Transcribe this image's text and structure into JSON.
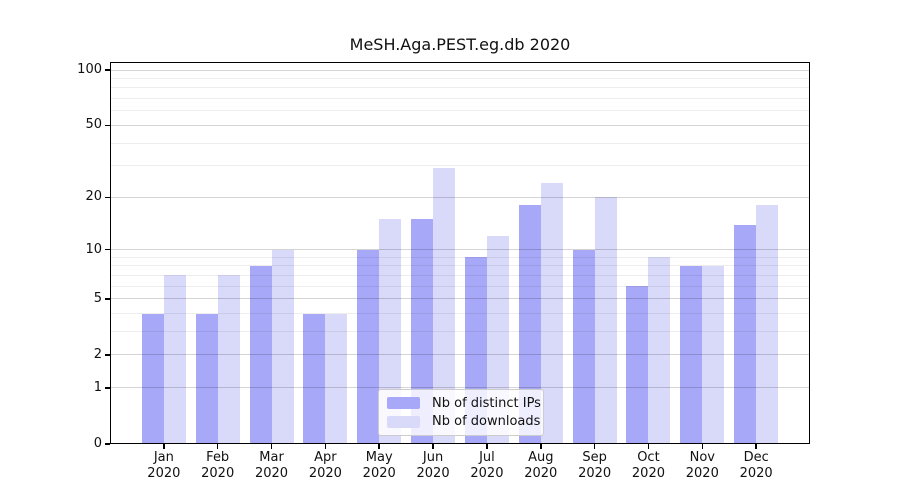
{
  "chart_data": {
    "type": "bar",
    "title": "MeSH.Aga.PEST.eg.db 2020",
    "categories": [
      "Jan",
      "Feb",
      "Mar",
      "Apr",
      "May",
      "Jun",
      "Jul",
      "Aug",
      "Sep",
      "Oct",
      "Nov",
      "Dec"
    ],
    "x_sublabel": "2020",
    "series": [
      {
        "key": "distinct-ips",
        "name": "Nb of distinct IPs",
        "color": "#a8a8f8",
        "values": [
          4,
          4,
          8,
          4,
          10,
          15,
          9,
          18,
          10,
          6,
          8,
          14
        ]
      },
      {
        "key": "downloads",
        "name": "Nb of downloads",
        "color": "#d9d9fa",
        "values": [
          7,
          7,
          10,
          4,
          15,
          29,
          12,
          24,
          20,
          9,
          8,
          18
        ]
      }
    ],
    "y_scale": "log1p",
    "ylim": [
      0,
      110.5
    ],
    "y_ticks": [
      0,
      1,
      2,
      5,
      10,
      20,
      50,
      100
    ],
    "y_minor_gridlines": [
      3,
      4,
      6,
      7,
      8,
      9,
      30,
      40,
      60,
      70,
      80,
      90
    ],
    "grid": "horizontal gridlines drawn over bars",
    "legend_position": "lower center inside plot",
    "axis_color": "#000000",
    "background_color": "#ffffff"
  }
}
